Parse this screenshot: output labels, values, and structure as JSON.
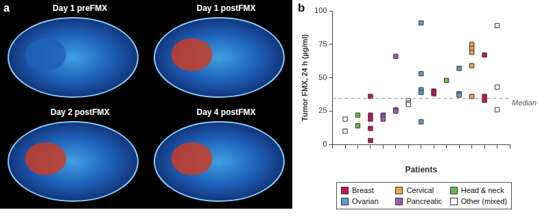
{
  "panel_a": {
    "label": "a",
    "images": [
      {
        "title": "Day 1 preFMX"
      },
      {
        "title": "Day 1 postFMX"
      },
      {
        "title": "Day 2 postFMX"
      },
      {
        "title": "Day 4 postFMX"
      }
    ]
  },
  "chart_data": {
    "type": "scatter",
    "panel_label": "b",
    "x_label": "Patients",
    "y_label": "Tumor FMX, 24 h (µg/ml)",
    "xlim": [
      0,
      14
    ],
    "xticks": [
      0,
      1,
      2,
      3,
      4,
      5,
      6,
      7,
      8,
      9,
      10,
      11,
      12,
      13,
      14
    ],
    "ylim": [
      0,
      100
    ],
    "yticks": [
      0,
      25,
      50,
      75,
      100
    ],
    "grid": false,
    "tick_labels": "y",
    "legend": "bottom",
    "marker": "square",
    "median": {
      "value": 34.5,
      "label": "Median"
    },
    "series": [
      {
        "name": "Breast",
        "color": "#c2185b",
        "x": [
          3,
          3,
          3,
          3,
          3,
          8,
          8,
          8,
          12,
          12,
          12
        ],
        "values": [
          36,
          22,
          19,
          12,
          3,
          40,
          38,
          39,
          67,
          36,
          33
        ]
      },
      {
        "name": "Cervical",
        "color": "#f0a050",
        "x": [
          11,
          11,
          11,
          11,
          11
        ],
        "values": [
          75,
          72,
          69,
          59,
          36
        ]
      },
      {
        "name": "Head & neck",
        "color": "#6cb84a",
        "x": [
          2,
          2,
          9
        ],
        "values": [
          22,
          14,
          48
        ]
      },
      {
        "name": "Ovarian",
        "color": "#5b9bd5",
        "x": [
          7,
          7,
          7,
          7,
          7,
          10,
          10,
          10
        ],
        "values": [
          91,
          53,
          41,
          39,
          17,
          57,
          38,
          37
        ]
      },
      {
        "name": "Pancreatic",
        "color": "#9c5fb5",
        "x": [
          4,
          4,
          4,
          5,
          5,
          5
        ],
        "values": [
          22,
          21,
          19,
          66,
          26,
          25
        ]
      },
      {
        "name": "Other (mixed)",
        "color": "#ffffff",
        "x": [
          1,
          1,
          6,
          6,
          6,
          13,
          13,
          13
        ],
        "values": [
          19,
          10,
          33,
          31,
          30,
          89,
          43,
          26
        ]
      }
    ]
  }
}
